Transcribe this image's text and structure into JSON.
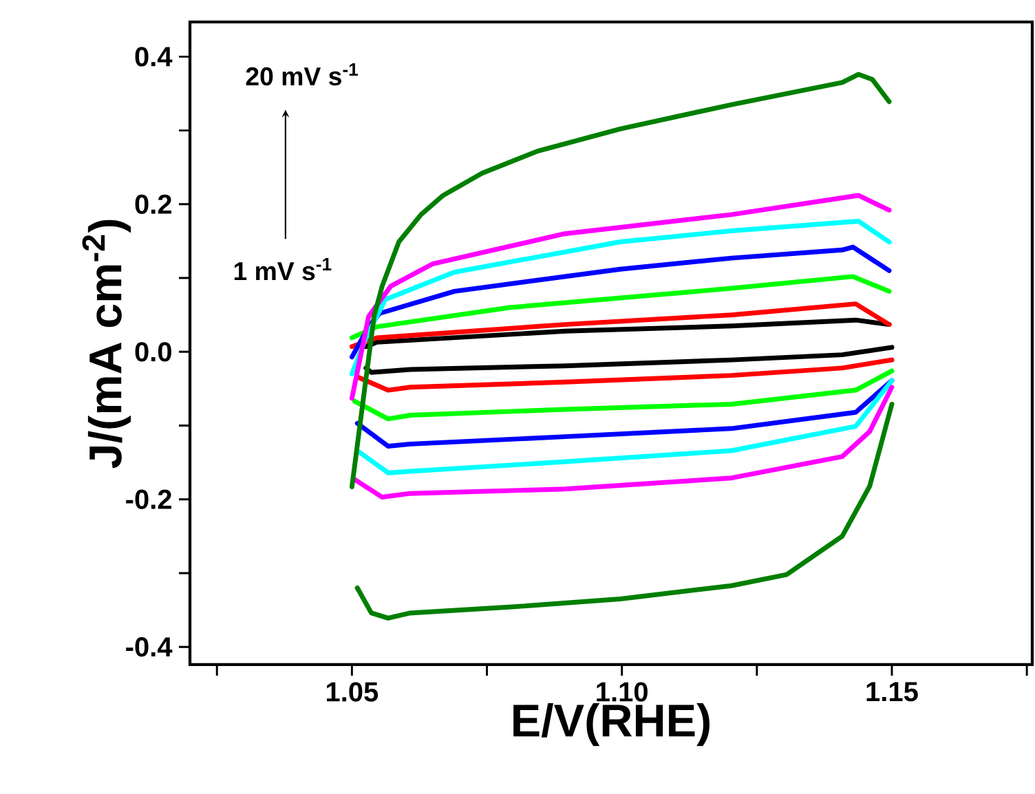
{
  "chart_data": {
    "type": "line",
    "xlabel": "E/V(RHE)",
    "ylabel": "J/(mA cm$^{-2}$)",
    "annotations": [
      "20 mV s$^{-1}$",
      "1 mV s$^{-1}$"
    ],
    "xlim": [
      1.02,
      1.176
    ],
    "ylim": [
      -0.424,
      0.447
    ],
    "xticks": [
      {
        "value": 1.025,
        "label": null
      },
      {
        "value": 1.05,
        "label": "1.05"
      },
      {
        "value": 1.075,
        "label": null
      },
      {
        "value": 1.1,
        "label": "1.10"
      },
      {
        "value": 1.125,
        "label": null
      },
      {
        "value": 1.15,
        "label": "1.15"
      },
      {
        "value": 1.175,
        "label": null
      }
    ],
    "yticks": [
      {
        "value": -0.4,
        "label": "-0.4"
      },
      {
        "value": -0.3,
        "label": null
      },
      {
        "value": -0.2,
        "label": "-0.2"
      },
      {
        "value": -0.1,
        "label": null
      },
      {
        "value": 0.0,
        "label": "0.0"
      },
      {
        "value": 0.1,
        "label": null
      },
      {
        "value": 0.2,
        "label": "0.2"
      },
      {
        "value": 0.3,
        "label": null
      },
      {
        "value": 0.4,
        "label": "0.4"
      }
    ],
    "line_style": "solid",
    "series": [
      {
        "color": "#000000",
        "x": [
          1.0526,
          1.0546,
          1.0895,
          1.1203,
          1.1433,
          1.1495
        ],
        "values": [
          0.007,
          0.013,
          0.028,
          0.035,
          0.043,
          0.037
        ]
      },
      {
        "color": "#000000",
        "x": [
          1.15,
          1.1408,
          1.1203,
          1.0895,
          1.0608,
          1.0536,
          1.0526
        ],
        "values": [
          0.006,
          -0.004,
          -0.011,
          -0.019,
          -0.024,
          -0.028,
          -0.022
        ]
      },
      {
        "color": "#ff0000",
        "x": [
          1.05,
          1.0546,
          1.0895,
          1.1203,
          1.1433,
          1.1495
        ],
        "values": [
          0.007,
          0.019,
          0.037,
          0.05,
          0.065,
          0.037
        ]
      },
      {
        "color": "#ff0000",
        "x": [
          1.15,
          1.1408,
          1.1203,
          1.0895,
          1.0608,
          1.0567,
          1.051
        ],
        "values": [
          -0.011,
          -0.022,
          -0.032,
          -0.041,
          -0.048,
          -0.052,
          -0.034
        ]
      },
      {
        "color": "#00ff00",
        "x": [
          1.05,
          1.0546,
          1.0792,
          1.1203,
          1.1428,
          1.1495
        ],
        "values": [
          0.019,
          0.034,
          0.06,
          0.086,
          0.102,
          0.082
        ]
      },
      {
        "color": "#00ff00",
        "x": [
          1.15,
          1.1433,
          1.1203,
          1.0895,
          1.0608,
          1.0567,
          1.0505
        ],
        "values": [
          -0.026,
          -0.052,
          -0.071,
          -0.078,
          -0.086,
          -0.091,
          -0.067
        ]
      },
      {
        "color": "#0000ff",
        "x": [
          1.05,
          1.0531,
          1.0551,
          1.069,
          1.0997,
          1.1203,
          1.1408,
          1.1428,
          1.1495
        ],
        "values": [
          -0.007,
          0.034,
          0.052,
          0.082,
          0.112,
          0.127,
          0.138,
          0.142,
          0.11
        ]
      },
      {
        "color": "#0000ff",
        "x": [
          1.15,
          1.1433,
          1.1203,
          1.0895,
          1.0608,
          1.0567,
          1.051
        ],
        "values": [
          -0.039,
          -0.082,
          -0.104,
          -0.115,
          -0.125,
          -0.128,
          -0.097
        ]
      },
      {
        "color": "#00ffff",
        "x": [
          1.05,
          1.0526,
          1.0562,
          1.069,
          1.0997,
          1.1203,
          1.1438,
          1.1495
        ],
        "values": [
          -0.03,
          0.019,
          0.071,
          0.108,
          0.149,
          0.164,
          0.177,
          0.149
        ]
      },
      {
        "color": "#00ffff",
        "x": [
          1.15,
          1.1433,
          1.1203,
          1.0895,
          1.0608,
          1.0567,
          1.051
        ],
        "values": [
          -0.039,
          -0.101,
          -0.134,
          -0.149,
          -0.162,
          -0.164,
          -0.134
        ]
      },
      {
        "color": "#ff00ff",
        "x": [
          1.05,
          1.0531,
          1.0572,
          1.0649,
          1.0894,
          1.1203,
          1.1438,
          1.1495
        ],
        "values": [
          -0.063,
          0.048,
          0.089,
          0.119,
          0.16,
          0.186,
          0.212,
          0.192
        ]
      },
      {
        "color": "#ff00ff",
        "x": [
          1.15,
          1.1459,
          1.1408,
          1.1203,
          1.0894,
          1.0608,
          1.0556,
          1.0505
        ],
        "values": [
          -0.048,
          -0.108,
          -0.142,
          -0.171,
          -0.186,
          -0.192,
          -0.197,
          -0.173
        ]
      },
      {
        "color": "#007f00",
        "x": [
          1.05,
          1.0541,
          1.0556,
          1.0587,
          1.0628,
          1.0669,
          1.0741,
          1.0844,
          1.0997,
          1.1203,
          1.1408,
          1.1438,
          1.1464,
          1.1495
        ],
        "values": [
          -0.183,
          0.048,
          0.089,
          0.149,
          0.186,
          0.212,
          0.242,
          0.272,
          0.302,
          0.335,
          0.365,
          0.376,
          0.369,
          0.339
        ]
      },
      {
        "color": "#007f00",
        "x": [
          1.15,
          1.1459,
          1.1408,
          1.1305,
          1.1203,
          1.0997,
          1.0792,
          1.0608,
          1.0567,
          1.0536,
          1.051
        ],
        "values": [
          -0.071,
          -0.182,
          -0.25,
          -0.302,
          -0.317,
          -0.335,
          -0.346,
          -0.354,
          -0.361,
          -0.354,
          -0.32
        ]
      }
    ]
  }
}
